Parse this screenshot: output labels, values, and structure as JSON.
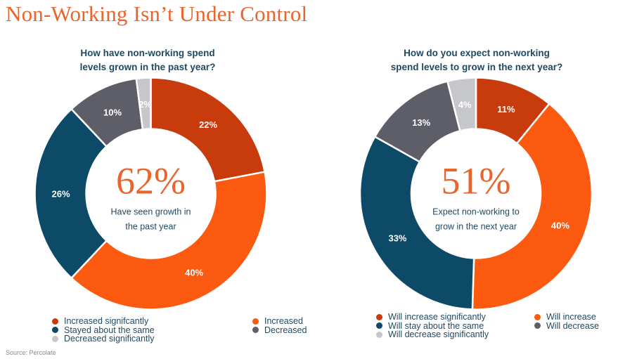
{
  "page_title": "Non-Working Isn’t Under Control",
  "source": "Source: Percolate",
  "colors": {
    "dark_orange": "#c83b0c",
    "orange": "#fd5a11",
    "navy": "#0c4a68",
    "dark_gray": "#5d5e67",
    "light_gray": "#c6c7cb",
    "title_orange": "#e8662e",
    "text_navy": "#1f4a63"
  },
  "chart_data": [
    {
      "type": "pie",
      "title_lines": [
        "How have non-working spend",
        "levels grown in the past year?"
      ],
      "center_value": "62%",
      "center_text_lines": [
        "Have seen growth in",
        "the past year"
      ],
      "slices": [
        {
          "name": "Increased signifcantly",
          "value": 22,
          "label": "22%",
          "color": "#c83b0c"
        },
        {
          "name": "Increased",
          "value": 40,
          "label": "40%",
          "color": "#fd5a11"
        },
        {
          "name": "Stayed about the same",
          "value": 26,
          "label": "26%",
          "color": "#0c4a68"
        },
        {
          "name": "Decreased",
          "value": 10,
          "label": "10%",
          "color": "#5d5e67"
        },
        {
          "name": "Decreased significantly",
          "value": 2,
          "label": "2%",
          "color": "#c6c7cb"
        }
      ]
    },
    {
      "type": "pie",
      "title_lines": [
        "How do you expect non-working",
        "spend levels to grow in the next year?"
      ],
      "center_value": "51%",
      "center_text_lines": [
        "Expect non-working to",
        "grow in the next year"
      ],
      "slices": [
        {
          "name": "Will increase significantly",
          "value": 11,
          "label": "11%",
          "color": "#c83b0c"
        },
        {
          "name": "Will increase",
          "value": 40,
          "label": "40%",
          "color": "#fd5a11"
        },
        {
          "name": "Will stay about the same",
          "value": 33,
          "label": "33%",
          "color": "#0c4a68"
        },
        {
          "name": "Will decrease",
          "value": 13,
          "label": "13%",
          "color": "#5d5e67"
        },
        {
          "name": "Will decrease significantly",
          "value": 4,
          "label": "4%",
          "color": "#c6c7cb"
        }
      ]
    }
  ]
}
